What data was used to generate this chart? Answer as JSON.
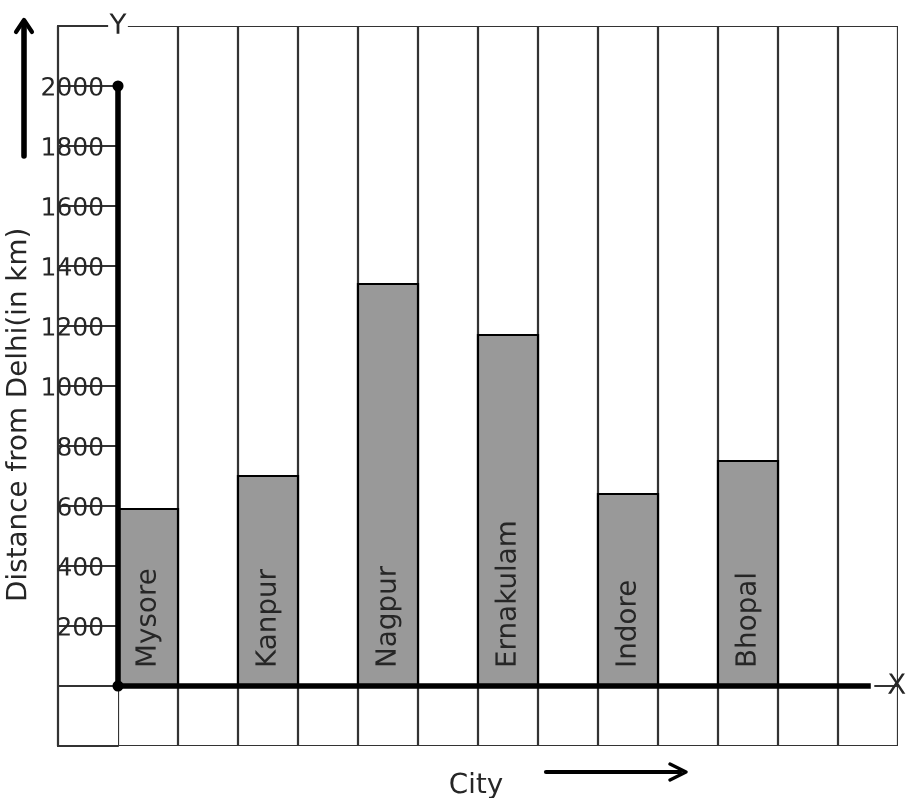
{
  "chart_data": {
    "type": "bar",
    "xlabel": "City",
    "ylabel": "Distance from Delhi(in km)",
    "categories": [
      "Mysore",
      "Kanpur",
      "Nagpur",
      "Ernakulam",
      "Indore",
      "Bhopal"
    ],
    "values": [
      590,
      700,
      1340,
      1170,
      640,
      750
    ],
    "color": "#999999",
    "ylim": [
      -200,
      2200
    ],
    "yticks": [
      200,
      400,
      600,
      800,
      1000,
      1200,
      1400,
      1600,
      1800,
      2000
    ],
    "grid": true,
    "tick_labels": "y",
    "annotations": [
      "X",
      "Y"
    ]
  }
}
